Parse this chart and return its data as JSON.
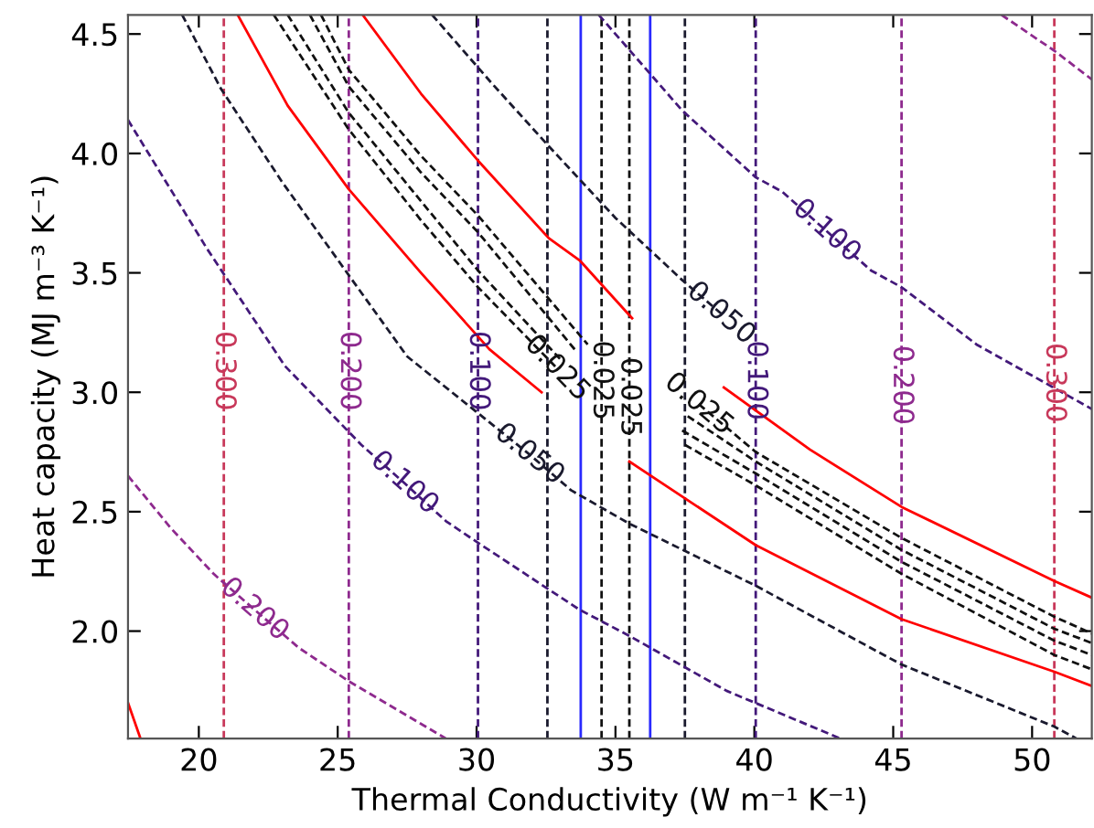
{
  "chart_data": {
    "type": "line",
    "xlabel": "Thermal Conductivity (W m⁻¹ K⁻¹)",
    "ylabel": "Heat capacity (MJ m⁻³ K⁻¹)",
    "xlim": [
      17.45,
      52.15
    ],
    "ylim": [
      1.55,
      4.58
    ],
    "xticks": [
      20,
      25,
      30,
      35,
      40,
      45,
      50
    ],
    "yticks": [
      {
        "value": 2,
        "label": "2.0"
      },
      {
        "value": 2.5,
        "label": "2.5"
      },
      {
        "value": 3,
        "label": "3.0"
      },
      {
        "value": 3.5,
        "label": "3.5"
      },
      {
        "value": 4,
        "label": "4.0"
      },
      {
        "value": 4.5,
        "label": "4.5"
      }
    ],
    "ref_lines": [
      {
        "axis": "x",
        "value": 20.9,
        "color": "#c8385a",
        "line_style": "dashed"
      },
      {
        "axis": "x",
        "value": 25.4,
        "color": "#8e2a8e",
        "line_style": "dashed"
      },
      {
        "axis": "x",
        "value": 30.05,
        "color": "#43197a",
        "line_style": "dashed"
      },
      {
        "axis": "x",
        "value": 32.55,
        "color": "#1a1a2e",
        "line_style": "dashed"
      },
      {
        "axis": "x",
        "value": 33.75,
        "color": "#2a2aff",
        "line_style": "solid"
      },
      {
        "axis": "x",
        "value": 34.5,
        "color": "#111111",
        "line_style": "dashed"
      },
      {
        "axis": "x",
        "value": 35.5,
        "color": "#111111",
        "line_style": "dashed"
      },
      {
        "axis": "x",
        "value": 36.25,
        "color": "#2a2aff",
        "line_style": "solid"
      },
      {
        "axis": "x",
        "value": 37.5,
        "color": "#1a1a2e",
        "line_style": "dashed"
      },
      {
        "axis": "x",
        "value": 40.05,
        "color": "#43197a",
        "line_style": "dashed"
      },
      {
        "axis": "x",
        "value": 45.3,
        "color": "#8e2a8e",
        "line_style": "dashed"
      },
      {
        "axis": "x",
        "value": 50.8,
        "color": "#c8385a",
        "line_style": "dashed"
      }
    ],
    "series": [
      {
        "color": "#8e2a8e",
        "line_style": "dashed",
        "x": [
          17.45,
          19.0,
          20.53,
          22.0,
          23.6,
          25.4,
          28.9
        ],
        "values": [
          2.65,
          2.43,
          2.24,
          2.09,
          1.93,
          1.79,
          1.55
        ]
      },
      {
        "color": "#43197a",
        "line_style": "dashed",
        "x": [
          17.45,
          20.3,
          23.1,
          25.85,
          27.4,
          28.9,
          30.05,
          33.7,
          35.5,
          39.0,
          43.1
        ],
        "values": [
          4.14,
          3.6,
          3.11,
          2.78,
          2.62,
          2.46,
          2.37,
          2.09,
          1.98,
          1.75,
          1.55
        ]
      },
      {
        "color": "#1a1a2e",
        "line_style": "dashed",
        "x": [
          19.4,
          20.8,
          23.0,
          25.4,
          27.5,
          30.4,
          31.9,
          33.4,
          35.5,
          40.05,
          45.3,
          50.8,
          51.6
        ],
        "values": [
          4.58,
          4.27,
          3.88,
          3.49,
          3.15,
          2.88,
          2.74,
          2.59,
          2.45,
          2.19,
          1.86,
          1.6,
          1.55
        ]
      },
      {
        "color": "#1a1a2e",
        "line_style": "dashed",
        "x": [
          28.4,
          30.5,
          32.6,
          35.0,
          37.4,
          38.8
        ],
        "values": [
          4.58,
          4.3,
          4.03,
          3.73,
          3.47,
          3.33
        ]
      },
      {
        "color": "#43197a",
        "line_style": "dashed",
        "x": [
          34.4,
          37.4,
          40.05,
          41.0,
          42.6,
          44.2,
          45.3,
          48.0,
          52.15
        ],
        "values": [
          4.58,
          4.18,
          3.9,
          3.84,
          3.675,
          3.51,
          3.44,
          3.2,
          2.93
        ]
      },
      {
        "color": "#8e2a8e",
        "line_style": "dashed",
        "x": [
          48.9,
          50.8,
          52.15
        ],
        "values": [
          4.58,
          4.43,
          4.31
        ]
      },
      {
        "color": "#ff0000",
        "line_style": "solid",
        "x": [
          17.45,
          17.9
        ],
        "values": [
          1.7,
          1.55
        ]
      },
      {
        "color": "#ff0000",
        "line_style": "solid",
        "x": [
          21.4,
          23.2,
          25.4,
          28.0,
          30.46,
          32.34,
          34.0,
          35.5,
          40.05,
          45.3,
          50.8,
          52.15
        ],
        "values": [
          4.58,
          4.2,
          3.85,
          3.5,
          3.18,
          3.0,
          null,
          2.71,
          2.36,
          2.05,
          1.83,
          1.77
        ]
      },
      {
        "color": "#ff0000",
        "line_style": "solid",
        "x": [
          25.9,
          28.0,
          30.05,
          32.6,
          33.73,
          35.6,
          37.2,
          38.9,
          42.0,
          45.3,
          50.8,
          52.15
        ],
        "values": [
          4.58,
          4.25,
          3.97,
          3.645,
          3.55,
          3.31,
          null,
          3.02,
          2.76,
          2.52,
          2.21,
          2.14
        ]
      },
      {
        "color": "#111111",
        "line_style": "dashed",
        "x": [
          22.7,
          25.4,
          28.0,
          30.05,
          32.9,
          35.0,
          37.5,
          40.05,
          45.3,
          50.8,
          52.15
        ],
        "values": [
          4.58,
          4.1,
          3.72,
          3.44,
          3.1,
          null,
          2.78,
          2.61,
          2.24,
          1.9,
          1.84
        ]
      },
      {
        "color": "#111111",
        "line_style": "dashed",
        "x": [
          23.2,
          25.4,
          28.0,
          30.05,
          33.0,
          35.2,
          37.4,
          40.05,
          45.3,
          50.8,
          52.15
        ],
        "values": [
          4.58,
          4.17,
          3.8,
          3.51,
          3.14,
          null,
          2.84,
          2.66,
          2.29,
          1.96,
          1.9
        ]
      },
      {
        "color": "#111111",
        "line_style": "dashed",
        "x": [
          24.0,
          25.4,
          28.0,
          30.05,
          33.6,
          35.5,
          37.6,
          40.05,
          45.3,
          50.8,
          52.15
        ],
        "values": [
          4.58,
          4.28,
          3.92,
          3.67,
          3.17,
          null,
          2.9,
          2.71,
          2.34,
          2.01,
          1.95
        ]
      },
      {
        "color": "#111111",
        "line_style": "dashed",
        "x": [
          24.4,
          25.4,
          28.0,
          30.05,
          34.0,
          36.0,
          38.0,
          40.05,
          45.3,
          50.8,
          52.15
        ],
        "values": [
          4.58,
          4.35,
          3.99,
          3.74,
          3.2,
          null,
          2.95,
          2.75,
          2.39,
          2.06,
          1.99
        ]
      }
    ],
    "annotations": [
      {
        "text": "0.300",
        "x": 20.9,
        "y": 3.09
      },
      {
        "text": "0.200",
        "x": 25.4,
        "y": 3.09
      },
      {
        "text": "0.100",
        "x": 30.05,
        "y": 3.09
      },
      {
        "text": "0.025",
        "x": 34.5,
        "y": 3.05
      },
      {
        "text": "0.025",
        "x": 35.5,
        "y": 2.98
      },
      {
        "text": "0.100",
        "x": 40.05,
        "y": 3.05
      },
      {
        "text": "0.200",
        "x": 45.3,
        "y": 3.03
      },
      {
        "text": "0.300",
        "x": 50.8,
        "y": 3.04
      },
      {
        "text": "0.200",
        "x": 22.0,
        "y": 2.09
      },
      {
        "text": "0.100",
        "x": 27.4,
        "y": 2.62
      },
      {
        "text": "0.050",
        "x": 31.9,
        "y": 2.74
      },
      {
        "text": "0.050",
        "x": 38.8,
        "y": 3.33
      },
      {
        "text": "0.100",
        "x": 42.6,
        "y": 3.675
      },
      {
        "text": "0.025",
        "x": 32.9,
        "y": 3.1
      },
      {
        "text": "0.025",
        "x": 38.0,
        "y": 2.95
      }
    ]
  }
}
